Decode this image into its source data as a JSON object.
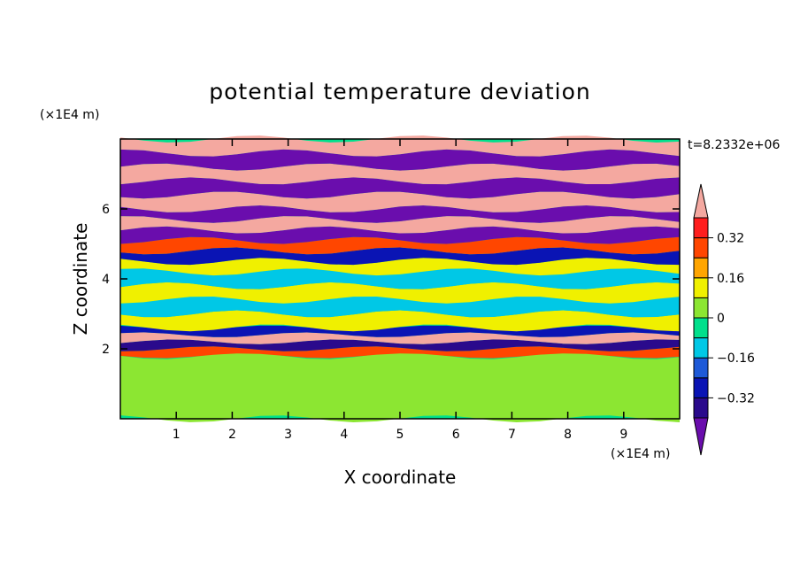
{
  "chart_data": {
    "type": "heatmap",
    "title": "potential temperature deviation",
    "xlabel": "X coordinate",
    "ylabel": "Z coordinate",
    "x_unit": "(×1E4 m)",
    "y_unit": "(×1E4 m)",
    "time_label": "t=8.2332e+06",
    "xlim": [
      0,
      10
    ],
    "ylim": [
      0,
      8
    ],
    "x_ticks": [
      "1",
      "2",
      "3",
      "4",
      "5",
      "6",
      "7",
      "8",
      "9"
    ],
    "y_ticks": [
      "2",
      "4",
      "6"
    ],
    "colorbar": {
      "levels": [
        -0.48,
        -0.4,
        -0.32,
        -0.24,
        -0.16,
        -0.08,
        0,
        0.08,
        0.16,
        0.24,
        0.32,
        0.4
      ],
      "colors": [
        "#6a0dad",
        "#2a0a8c",
        "#0a14b4",
        "#1e5ad8",
        "#00c8e6",
        "#00e08c",
        "#8ce632",
        "#f0f000",
        "#ffa500",
        "#ff4600",
        "#ff1e1e",
        "#f4a8a0"
      ],
      "tick_labels": [
        "0.32",
        "0.16",
        "0",
        "−0.16",
        "−0.32"
      ],
      "tick_values": [
        0.32,
        0.16,
        0,
        -0.16,
        -0.32
      ]
    },
    "bands": [
      {
        "z": [
          0.0,
          1.8
        ],
        "value": 0.04
      },
      {
        "z": [
          1.8,
          2.0
        ],
        "value": 0.24
      },
      {
        "z": [
          2.0,
          2.2
        ],
        "value": -0.4
      },
      {
        "z": [
          2.2,
          2.4
        ],
        "value": 0.44
      },
      {
        "z": [
          2.4,
          2.6
        ],
        "value": -0.32
      },
      {
        "z": [
          2.6,
          3.0
        ],
        "value": 0.08
      },
      {
        "z": [
          3.0,
          3.4
        ],
        "value": -0.12
      },
      {
        "z": [
          3.4,
          3.8
        ],
        "value": 0.08
      },
      {
        "z": [
          3.8,
          4.2
        ],
        "value": -0.16
      },
      {
        "z": [
          4.2,
          4.5
        ],
        "value": 0.08
      },
      {
        "z": [
          4.5,
          4.8
        ],
        "value": -0.32
      },
      {
        "z": [
          4.8,
          5.1
        ],
        "value": 0.24
      },
      {
        "z": [
          5.1,
          5.4
        ],
        "value": -0.44
      },
      {
        "z": [
          5.4,
          5.7
        ],
        "value": 0.44
      },
      {
        "z": [
          5.7,
          6.0
        ],
        "value": -0.44
      },
      {
        "z": [
          6.0,
          6.4
        ],
        "value": 0.44
      },
      {
        "z": [
          6.4,
          6.8
        ],
        "value": -0.44
      },
      {
        "z": [
          6.8,
          7.2
        ],
        "value": 0.44
      },
      {
        "z": [
          7.2,
          7.6
        ],
        "value": -0.44
      },
      {
        "z": [
          7.6,
          8.0
        ],
        "value": 0.44
      }
    ]
  }
}
